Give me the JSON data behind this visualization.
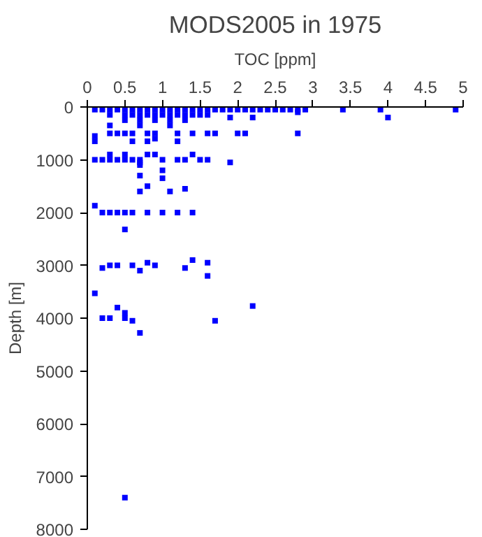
{
  "chart_data": {
    "type": "scatter",
    "title": "MODS2005 in 1975",
    "xlabel": "TOC [ppm]",
    "ylabel": "Depth [m]",
    "marker": "square",
    "grid": false,
    "xlim": [
      0,
      5
    ],
    "xticks": [
      0,
      0.5,
      1,
      1.5,
      2,
      2.5,
      3,
      3.5,
      4,
      4.5,
      5
    ],
    "ylim": [
      8000,
      0
    ],
    "yticks": [
      0,
      1000,
      2000,
      3000,
      4000,
      5000,
      6000,
      7000,
      8000
    ],
    "series": [
      {
        "color": "#0000ff",
        "x": [
          0.1,
          0.2,
          0.3,
          0.4,
          0.5,
          0.6,
          0.7,
          0.8,
          0.9,
          1.0,
          1.1,
          1.2,
          1.3,
          1.4,
          1.5,
          1.6,
          1.7,
          1.8,
          1.9,
          2.0,
          2.1,
          2.2,
          2.3,
          2.4,
          2.5,
          2.6,
          2.7,
          2.8,
          2.9,
          3.4,
          3.9,
          4.9,
          0.3,
          0.5,
          0.6,
          0.7,
          0.8,
          0.9,
          1.0,
          1.1,
          1.2,
          1.3,
          1.4,
          1.5,
          1.6,
          0.5,
          0.7,
          0.9,
          1.1,
          1.3,
          4.0,
          2.2,
          1.9,
          2.8,
          0.3,
          0.7,
          1.1,
          0.3,
          0.4,
          0.5,
          0.6,
          0.8,
          0.9,
          1.2,
          1.4,
          1.6,
          1.7,
          2.0,
          2.1,
          2.8,
          0.1,
          0.9,
          1.2,
          0.1,
          0.6,
          0.8,
          0.3,
          0.5,
          0.8,
          0.9,
          1.4,
          0.1,
          0.2,
          0.3,
          0.4,
          0.5,
          0.6,
          0.7,
          1.0,
          1.2,
          1.3,
          1.5,
          1.6,
          0.7,
          1.9,
          0.7,
          1.0,
          0.7,
          1.0,
          0.8,
          0.7,
          1.1,
          1.3,
          0.1,
          0.2,
          0.3,
          0.4,
          0.5,
          0.6,
          0.8,
          1.0,
          1.2,
          1.4,
          0.5,
          0.2,
          0.3,
          0.4,
          0.6,
          0.7,
          0.8,
          0.9,
          1.3,
          1.4,
          1.6,
          1.6,
          0.1,
          0.4,
          0.5,
          0.5,
          0.6,
          0.2,
          0.3,
          0.7,
          1.7,
          2.2,
          0.5
        ],
        "values": [
          50,
          50,
          50,
          50,
          50,
          50,
          50,
          50,
          50,
          50,
          50,
          50,
          50,
          50,
          50,
          50,
          50,
          50,
          50,
          50,
          50,
          50,
          50,
          50,
          50,
          50,
          50,
          50,
          50,
          50,
          50,
          50,
          150,
          150,
          150,
          150,
          150,
          150,
          150,
          150,
          150,
          150,
          150,
          150,
          150,
          250,
          250,
          250,
          250,
          250,
          200,
          200,
          200,
          100,
          350,
          350,
          350,
          500,
          500,
          500,
          500,
          500,
          500,
          500,
          500,
          500,
          500,
          500,
          500,
          500,
          550,
          600,
          650,
          650,
          650,
          650,
          900,
          900,
          900,
          900,
          900,
          1000,
          1000,
          1000,
          1000,
          1000,
          1000,
          1000,
          1000,
          1000,
          1000,
          1000,
          1000,
          1050,
          1050,
          1100,
          1200,
          1300,
          1350,
          1500,
          1600,
          1600,
          1550,
          1870,
          2000,
          2000,
          2000,
          2000,
          2000,
          2000,
          2000,
          2000,
          2000,
          2320,
          3050,
          3000,
          3000,
          3000,
          3100,
          2950,
          3000,
          3050,
          2900,
          2950,
          3200,
          3530,
          3800,
          3900,
          4000,
          4050,
          4000,
          4000,
          4280,
          4050,
          3770,
          7400
        ]
      }
    ]
  }
}
